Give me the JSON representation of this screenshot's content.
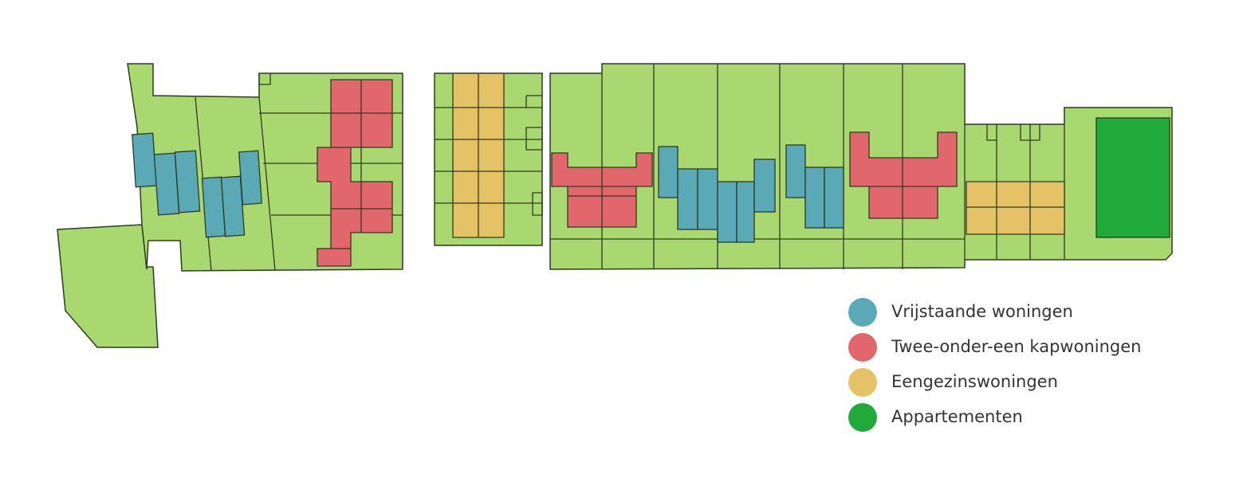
{
  "legend": {
    "items": [
      {
        "label": "Vrijstaande woningen",
        "color": "#5aa9b6"
      },
      {
        "label": "Twee-onder-een kapwoningen",
        "color": "#e2676c"
      },
      {
        "label": "Eengezinswoningen",
        "color": "#e6c266"
      },
      {
        "label": "Appartementen",
        "color": "#1faa3a"
      }
    ]
  }
}
